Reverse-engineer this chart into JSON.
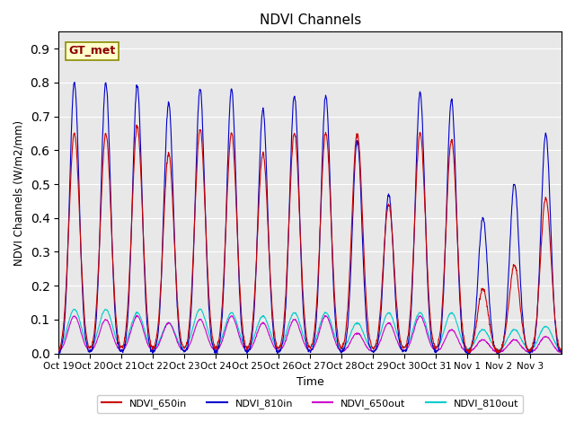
{
  "title": "NDVI Channels",
  "xlabel": "Time",
  "ylabel": "NDVI Channels (W/m2/mm)",
  "ylim": [
    0.0,
    0.95
  ],
  "yticks": [
    0.0,
    0.1,
    0.2,
    0.3,
    0.4,
    0.5,
    0.6,
    0.7,
    0.8,
    0.9
  ],
  "xtick_labels": [
    "Oct 19",
    "Oct 20",
    "Oct 21",
    "Oct 22",
    "Oct 23",
    "Oct 24",
    "Oct 25",
    "Oct 26",
    "Oct 27",
    "Oct 28",
    "Oct 29",
    "Oct 30",
    "Oct 31",
    "Nov 1",
    "Nov 2",
    "Nov 3"
  ],
  "legend_labels": [
    "NDVI_650in",
    "NDVI_810in",
    "NDVI_650out",
    "NDVI_810out"
  ],
  "line_colors": [
    "#cc0000",
    "#0000cc",
    "#cc00cc",
    "#00cccc"
  ],
  "annotation_text": "GT_met",
  "background_color": "#e8e8e8",
  "peak_650in": [
    0.65,
    0.65,
    0.67,
    0.59,
    0.66,
    0.65,
    0.59,
    0.65,
    0.65,
    0.65,
    0.44,
    0.65,
    0.63,
    0.19,
    0.26,
    0.46
  ],
  "peak_810in": [
    0.8,
    0.8,
    0.79,
    0.74,
    0.78,
    0.78,
    0.72,
    0.76,
    0.76,
    0.63,
    0.47,
    0.77,
    0.75,
    0.4,
    0.5,
    0.65
  ],
  "peak_650out": [
    0.11,
    0.1,
    0.11,
    0.09,
    0.1,
    0.11,
    0.09,
    0.1,
    0.11,
    0.06,
    0.09,
    0.11,
    0.07,
    0.04,
    0.04,
    0.05
  ],
  "peak_810out": [
    0.13,
    0.13,
    0.12,
    0.09,
    0.13,
    0.12,
    0.11,
    0.12,
    0.12,
    0.09,
    0.12,
    0.12,
    0.12,
    0.07,
    0.07,
    0.08
  ],
  "n_days": 16,
  "pts_per_day": 100
}
